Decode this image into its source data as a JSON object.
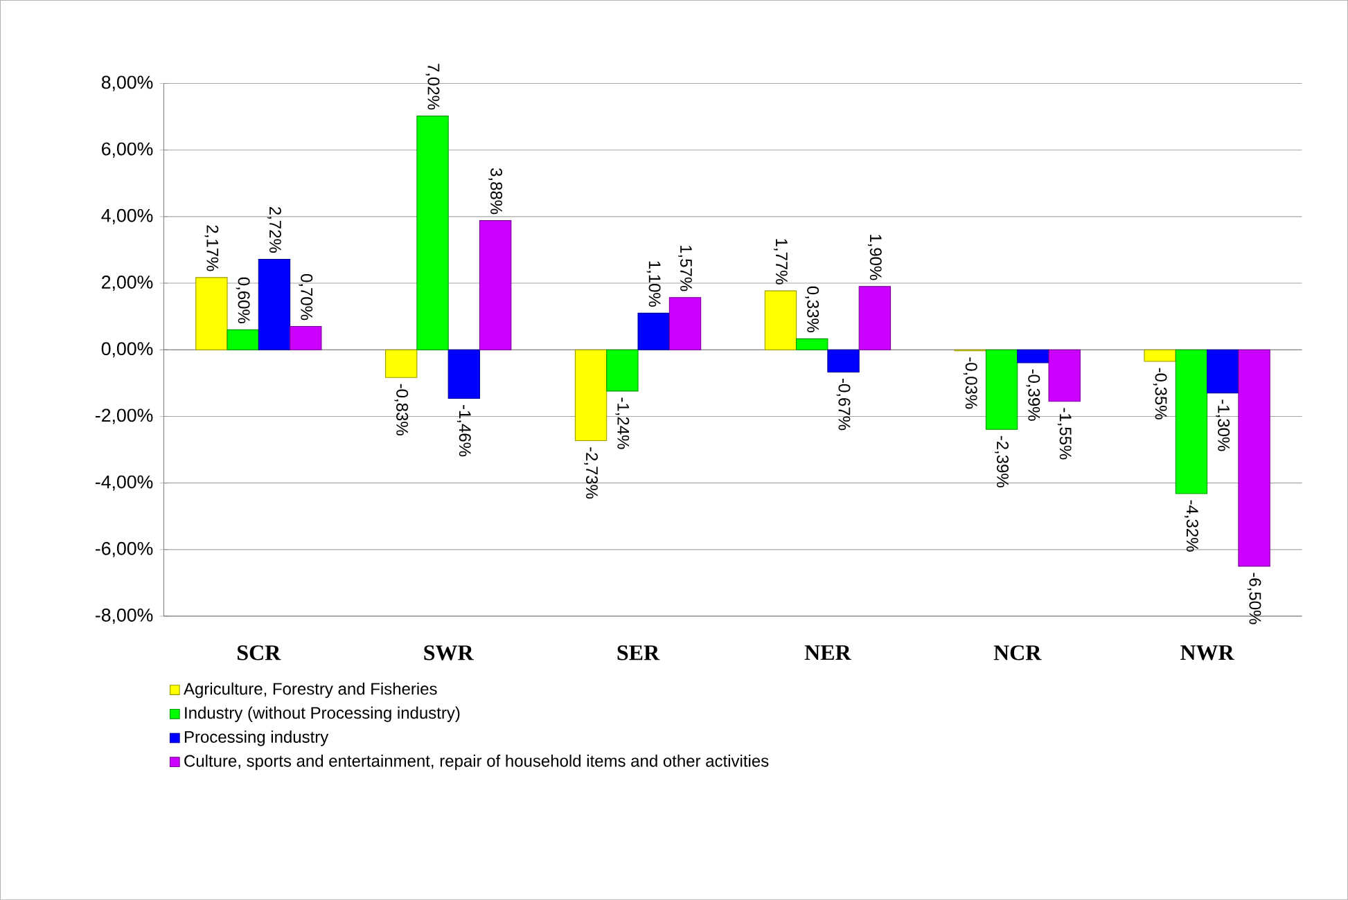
{
  "chart_data": {
    "type": "bar",
    "categories": [
      "SCR",
      "SWR",
      "SER",
      "NER",
      "NCR",
      "NWR"
    ],
    "series": [
      {
        "name": "Agriculture, Forestry and Fisheries",
        "color": "#ffff00",
        "values": [
          2.17,
          -0.83,
          -2.73,
          1.77,
          -0.03,
          -0.35
        ],
        "value_labels": [
          "2,17%",
          "-0,83%",
          "-2,73%",
          "1,77%",
          "-0,03%",
          "-0,35%"
        ]
      },
      {
        "name": "Industry (without Processing industry)",
        "color": "#00ff00",
        "values": [
          0.6,
          7.02,
          -1.24,
          0.33,
          -2.39,
          -4.32
        ],
        "value_labels": [
          "0,60%",
          "7,02%",
          "-1,24%",
          "0,33%",
          "-2,39%",
          "-4,32%"
        ]
      },
      {
        "name": "Processing industry",
        "color": "#0000ff",
        "values": [
          2.72,
          -1.46,
          1.1,
          -0.67,
          -0.39,
          -1.3
        ],
        "value_labels": [
          "2,72%",
          "-1,46%",
          "1,10%",
          "-0,67%",
          "-0,39%",
          "-1,30%"
        ]
      },
      {
        "name": "Culture, sports and entertainment, repair of household items and other activities",
        "color": "#cc00ff",
        "values": [
          0.7,
          3.88,
          1.57,
          1.9,
          -1.55,
          -6.5
        ],
        "value_labels": [
          "0,70%",
          "3,88%",
          "1,57%",
          "1,90%",
          "-1,55%",
          "-6,50%"
        ]
      }
    ],
    "ylim": [
      -8,
      8
    ],
    "yticks": [
      {
        "value": -8,
        "label": "-8,00%"
      },
      {
        "value": -6,
        "label": "-6,00%"
      },
      {
        "value": -4,
        "label": "-4,00%"
      },
      {
        "value": -2,
        "label": "-2,00%"
      },
      {
        "value": 0,
        "label": "0,00%"
      },
      {
        "value": 2,
        "label": "2,00%"
      },
      {
        "value": 4,
        "label": "4,00%"
      },
      {
        "value": 6,
        "label": "6,00%"
      },
      {
        "value": 8,
        "label": "8,00%"
      }
    ],
    "grid": "y",
    "legend": "bottom"
  }
}
